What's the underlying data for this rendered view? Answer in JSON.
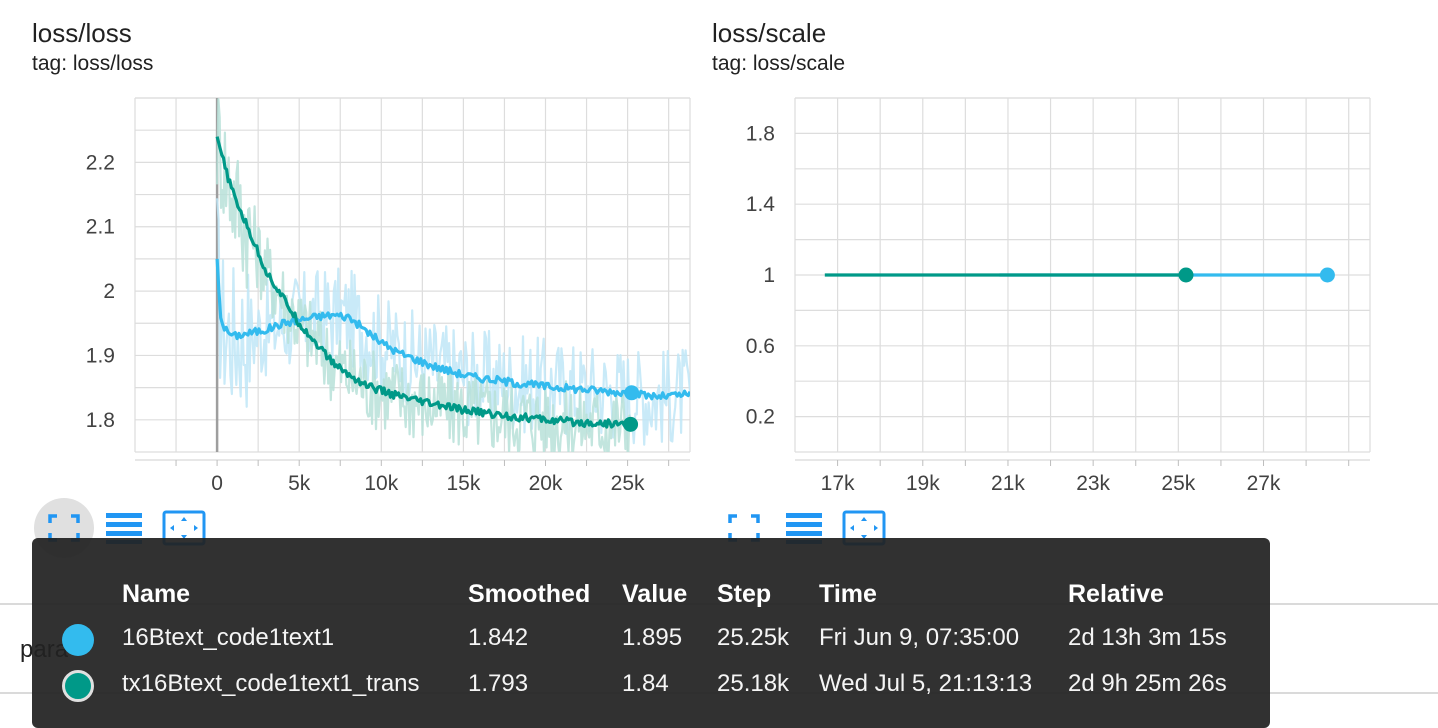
{
  "cards": [
    {
      "title": "loss/loss",
      "tag": "tag: loss/loss"
    },
    {
      "title": "loss/scale",
      "tag": "tag: loss/scale"
    }
  ],
  "colors": {
    "run1": "#33bbee",
    "run2": "#009988",
    "run1_raw": "#bfe6f7",
    "run2_raw": "#b7e0d8",
    "grid": "#dddddd",
    "zero_line": "#9e9e9e",
    "accent": "#2196f3"
  },
  "icons": [
    "fullscreen-icon",
    "data-table-icon",
    "fit-domain-icon"
  ],
  "chart_data": [
    {
      "type": "line",
      "title": "loss/loss",
      "xlim": [
        -5000,
        28800
      ],
      "ylim": [
        1.75,
        2.3
      ],
      "x_ticks": [
        0,
        5000,
        10000,
        15000,
        20000,
        25000
      ],
      "x_tick_labels": [
        "0",
        "5k",
        "10k",
        "15k",
        "20k",
        "25k"
      ],
      "y_ticks": [
        1.8,
        1.9,
        2.0,
        2.1,
        2.2
      ],
      "y_tick_labels": [
        "1.8",
        "1.9",
        "2",
        "2.1",
        "2.2"
      ],
      "grid": true,
      "series": [
        {
          "name": "16Btext_code1text1",
          "color": "#33bbee",
          "x": [
            0,
            200,
            500,
            1000,
            2000,
            3000,
            4000,
            5000,
            6000,
            7000,
            8000,
            9000,
            10000,
            11000,
            12000,
            13000,
            14000,
            15000,
            16000,
            17000,
            18000,
            19000,
            20000,
            21000,
            22000,
            23000,
            24000,
            25000,
            26000,
            27000,
            28000,
            28800
          ],
          "smoothed": [
            2.05,
            1.96,
            1.94,
            1.93,
            1.935,
            1.94,
            1.95,
            1.955,
            1.96,
            1.963,
            1.96,
            1.94,
            1.92,
            1.905,
            1.895,
            1.885,
            1.877,
            1.87,
            1.865,
            1.862,
            1.858,
            1.855,
            1.852,
            1.85,
            1.848,
            1.846,
            1.844,
            1.842,
            1.838,
            1.836,
            1.838,
            1.84
          ]
        },
        {
          "name": "tx16Btext_code1text1_trans",
          "color": "#009988",
          "x": [
            0,
            200,
            500,
            1000,
            1500,
            2000,
            2500,
            3000,
            4000,
            5000,
            6000,
            7000,
            8000,
            9000,
            10000,
            11000,
            12000,
            13000,
            14000,
            15000,
            16000,
            17000,
            18000,
            19000,
            20000,
            21000,
            22000,
            23000,
            24000,
            25180
          ],
          "smoothed": [
            2.24,
            2.22,
            2.19,
            2.15,
            2.12,
            2.09,
            2.06,
            2.03,
            1.99,
            1.95,
            1.92,
            1.89,
            1.87,
            1.855,
            1.845,
            1.837,
            1.83,
            1.825,
            1.82,
            1.815,
            1.812,
            1.808,
            1.805,
            1.803,
            1.8,
            1.798,
            1.796,
            1.795,
            1.794,
            1.793
          ]
        }
      ]
    },
    {
      "type": "line",
      "title": "loss/scale",
      "xlim": [
        16000,
        29500
      ],
      "ylim": [
        0,
        2.0
      ],
      "x_ticks": [
        17000,
        19000,
        21000,
        23000,
        25000,
        27000
      ],
      "x_tick_labels": [
        "17k",
        "19k",
        "21k",
        "23k",
        "25k",
        "27k"
      ],
      "y_ticks": [
        0.2,
        0.6,
        1.0,
        1.4,
        1.8
      ],
      "y_tick_labels": [
        "0.2",
        "0.6",
        "1",
        "1.4",
        "1.8"
      ],
      "grid": true,
      "series": [
        {
          "name": "16Btext_code1text1",
          "color": "#33bbee",
          "x": [
            20800,
            28500
          ],
          "y": [
            1,
            1
          ]
        },
        {
          "name": "tx16Btext_code1text1_trans",
          "color": "#009988",
          "x": [
            16700,
            20800,
            25180
          ],
          "y": [
            1,
            1,
            1
          ]
        }
      ]
    }
  ],
  "table": {
    "headers": [
      "Name",
      "Smoothed",
      "Value",
      "Step",
      "Time",
      "Relative"
    ],
    "rows": [
      {
        "name": "16Btext_code1text1",
        "smoothed": "1.842",
        "value": "1.895",
        "step": "25.25k",
        "time": "Fri Jun 9, 07:35:00",
        "relative": "2d 13h 3m 15s",
        "color": "#33bbee"
      },
      {
        "name": "tx16Btext_code1text1_trans",
        "smoothed": "1.793",
        "value": "1.84",
        "step": "25.18k",
        "time": "Wed Jul 5, 21:13:13",
        "relative": "2d 9h 25m 26s",
        "color": "#009988"
      }
    ]
  },
  "background_text": "para"
}
